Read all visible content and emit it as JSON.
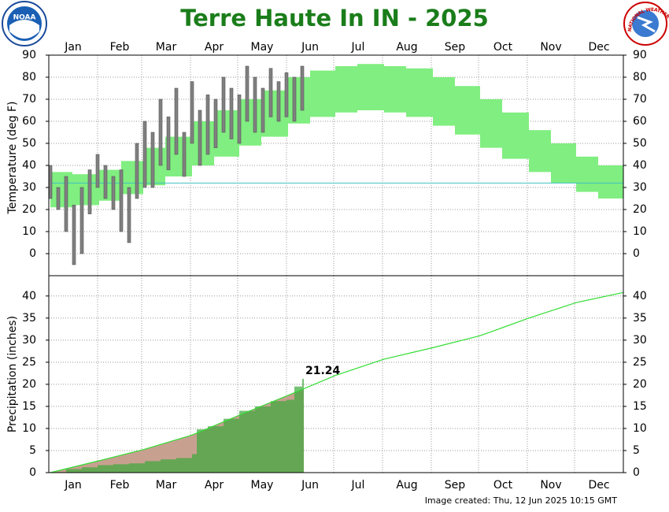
{
  "logos": {
    "noaa": "NOAA",
    "nws": "NATIONAL WEATHER SERVICE"
  },
  "chart_data": [
    {
      "type": "range",
      "title": "Terre Haute In IN - 2025",
      "ylabel": "Temperature (deg F)",
      "xlim": [
        0,
        365
      ],
      "xticks": [
        {
          "value": 0,
          "label": "Jan"
        },
        {
          "value": 31,
          "label": "Feb"
        },
        {
          "value": 59,
          "label": "Mar"
        },
        {
          "value": 90,
          "label": "Apr"
        },
        {
          "value": 120,
          "label": "May"
        },
        {
          "value": 151,
          "label": "Jun"
        },
        {
          "value": 181,
          "label": "Jul"
        },
        {
          "value": 212,
          "label": "Aug"
        },
        {
          "value": 243,
          "label": "Sep"
        },
        {
          "value": 273,
          "label": "Oct"
        },
        {
          "value": 304,
          "label": "Nov"
        },
        {
          "value": 334,
          "label": "Dec"
        }
      ],
      "ylim": [
        -10,
        90
      ],
      "yticks": [
        0,
        10,
        20,
        30,
        40,
        50,
        60,
        70,
        80,
        90
      ],
      "grid": true,
      "reference_line": {
        "value": 32,
        "color": "#40c0c0"
      },
      "normal": {
        "color": "#80ee80",
        "x": [
          1,
          15,
          32,
          46,
          60,
          74,
          91,
          105,
          121,
          135,
          152,
          166,
          182,
          196,
          213,
          227,
          244,
          258,
          274,
          288,
          305,
          319,
          335,
          349,
          365
        ],
        "low": [
          21,
          22,
          24,
          27,
          31,
          35,
          40,
          44,
          49,
          53,
          59,
          62,
          64,
          65,
          64,
          62,
          58,
          54,
          48,
          43,
          37,
          32,
          28,
          25,
          22
        ],
        "high": [
          37,
          36,
          38,
          42,
          48,
          53,
          60,
          65,
          70,
          74,
          80,
          83,
          85,
          86,
          85,
          84,
          80,
          76,
          70,
          64,
          56,
          50,
          44,
          40,
          37
        ]
      },
      "observed": {
        "color": "#808080",
        "x": [
          1,
          6,
          11,
          16,
          21,
          26,
          31,
          36,
          41,
          46,
          51,
          56,
          61,
          66,
          71,
          76,
          81,
          86,
          91,
          96,
          101,
          106,
          111,
          116,
          121,
          126,
          131,
          136,
          141,
          146,
          151,
          156,
          161
        ],
        "low": [
          25,
          20,
          10,
          -5,
          0,
          18,
          30,
          25,
          20,
          10,
          5,
          25,
          30,
          30,
          40,
          38,
          45,
          35,
          50,
          40,
          45,
          48,
          55,
          52,
          50,
          60,
          55,
          55,
          62,
          60,
          62,
          60,
          65
        ],
        "high": [
          40,
          30,
          35,
          22,
          30,
          38,
          45,
          40,
          35,
          38,
          30,
          50,
          60,
          55,
          70,
          62,
          75,
          55,
          78,
          65,
          72,
          70,
          80,
          75,
          72,
          85,
          80,
          75,
          84,
          78,
          82,
          80,
          85
        ]
      }
    },
    {
      "type": "cumulative",
      "ylabel": "Precipitation (inches)",
      "xlim": [
        0,
        365
      ],
      "xticks": [
        {
          "value": 0,
          "label": "Jan"
        },
        {
          "value": 31,
          "label": "Feb"
        },
        {
          "value": 59,
          "label": "Mar"
        },
        {
          "value": 90,
          "label": "Apr"
        },
        {
          "value": 120,
          "label": "May"
        },
        {
          "value": 151,
          "label": "Jun"
        },
        {
          "value": 181,
          "label": "Jul"
        },
        {
          "value": 212,
          "label": "Aug"
        },
        {
          "value": 243,
          "label": "Sep"
        },
        {
          "value": 273,
          "label": "Oct"
        },
        {
          "value": 304,
          "label": "Nov"
        },
        {
          "value": 334,
          "label": "Dec"
        }
      ],
      "ylim": [
        0,
        44.6
      ],
      "yticks": [
        0,
        5,
        10,
        15,
        20,
        25,
        30,
        35,
        40
      ],
      "grid": true,
      "normal": {
        "color": "#33dd33",
        "fill": "#c8a090",
        "x": [
          1,
          32,
          60,
          91,
          121,
          152,
          182,
          213,
          244,
          274,
          305,
          335,
          365
        ],
        "values": [
          0,
          2.7,
          5.2,
          8.5,
          13,
          17.5,
          22,
          25.7,
          28.3,
          31,
          35,
          38.5,
          40.8
        ]
      },
      "observed": {
        "color": "#3aa83a",
        "x": [
          1,
          11,
          21,
          31,
          41,
          51,
          61,
          71,
          81,
          91,
          94,
          101,
          111,
          121,
          131,
          141,
          151,
          156,
          161
        ],
        "values": [
          0.1,
          0.8,
          1.2,
          1.7,
          1.9,
          2.1,
          2.6,
          3.0,
          3.3,
          4.2,
          9.8,
          10.5,
          12.2,
          14.0,
          15.0,
          16.2,
          16.5,
          19.5,
          21.24
        ]
      },
      "footnote": "Image created: Thu, 12 Jun 2025 10:15 GMT"
    }
  ]
}
